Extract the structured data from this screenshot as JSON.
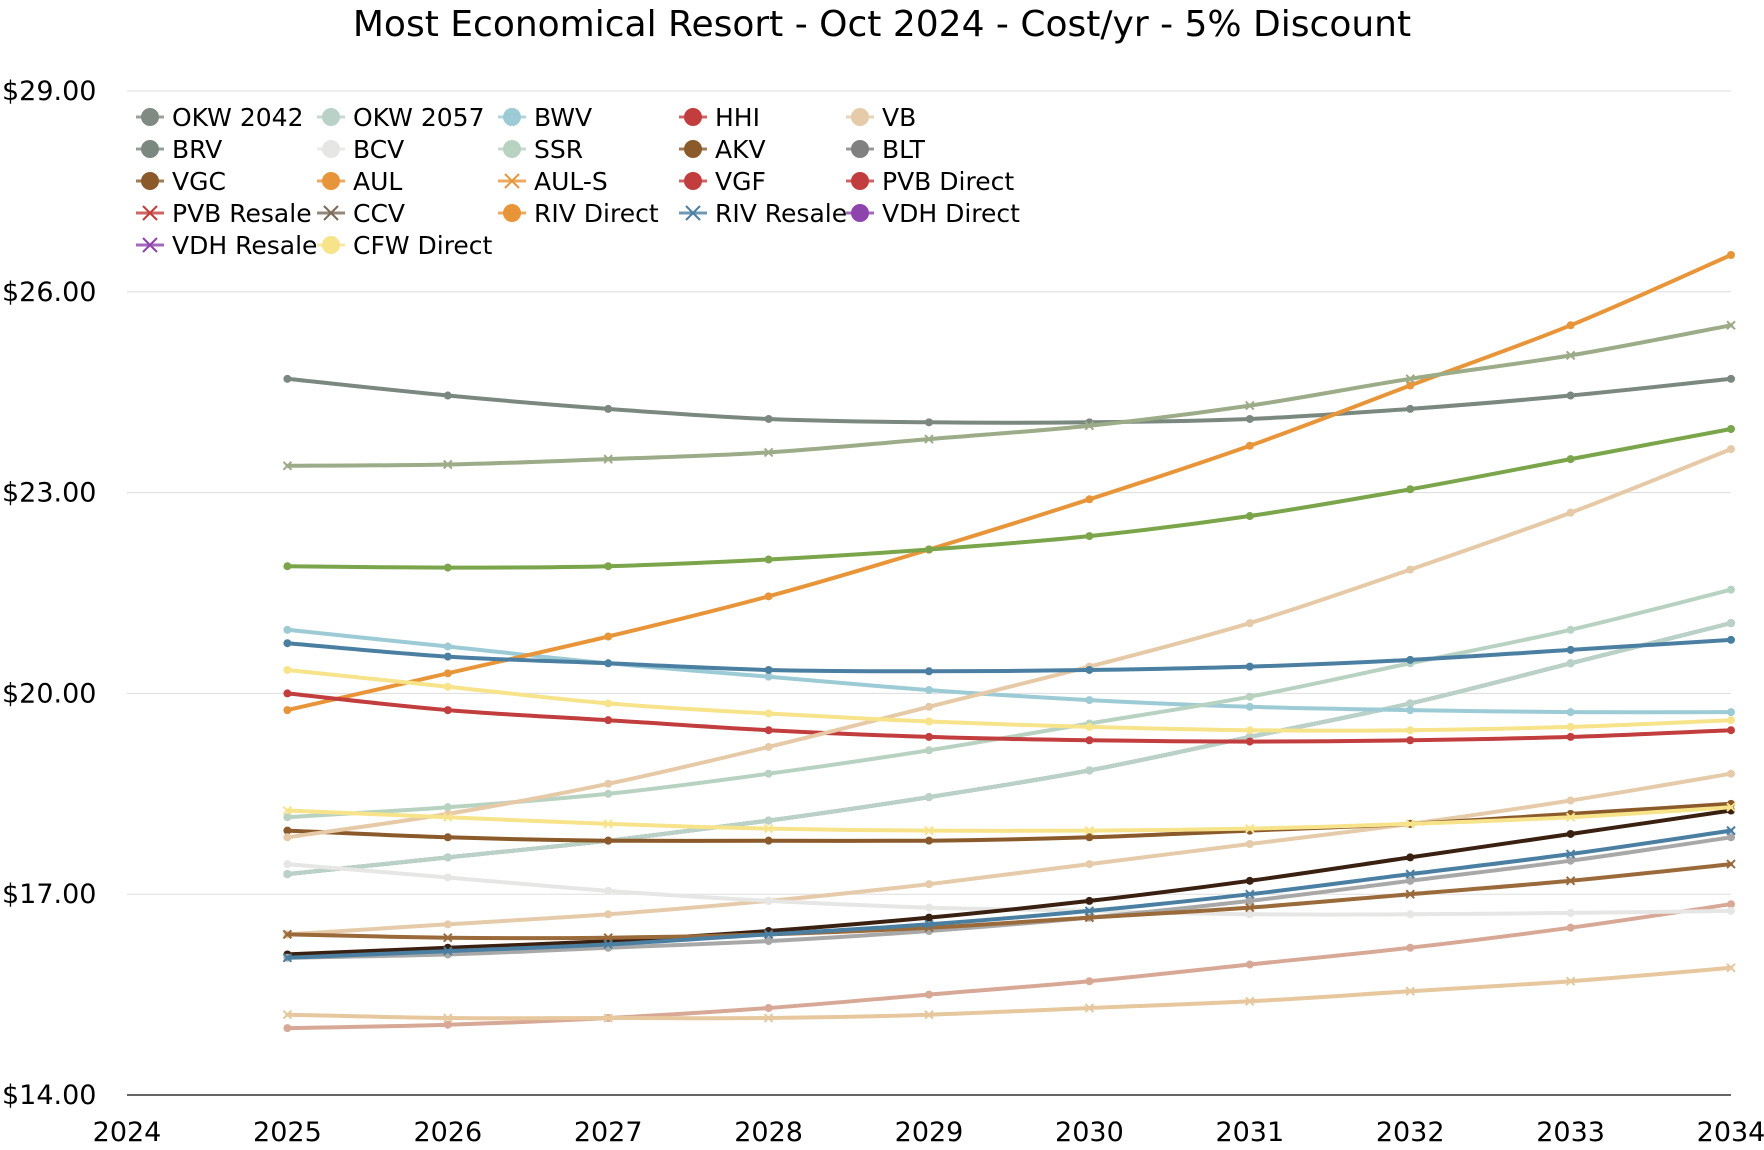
{
  "chart_data": {
    "type": "line",
    "title": "Most Economical Resort - Oct 2024 - Cost/yr - 5% Discount",
    "xlabel": "",
    "ylabel": "",
    "xlim": [
      2024,
      2034
    ],
    "ylim": [
      14,
      29
    ],
    "x_ticks": [
      "2024",
      "2025",
      "2026",
      "2027",
      "2028",
      "2029",
      "2030",
      "2031",
      "2032",
      "2033",
      "2034"
    ],
    "y_ticks": [
      "$14.00",
      "$17.00",
      "$20.00",
      "$23.00",
      "$26.00",
      "$29.00"
    ],
    "legend_position": "top-left",
    "x": [
      2025,
      2026,
      2027,
      2028,
      2029,
      2030,
      2031,
      2032,
      2033,
      2034
    ],
    "series": [
      {
        "name": "OKW 2042",
        "color": "#7f8b82",
        "marker": "dot",
        "values": [
          17.3,
          17.55,
          17.8,
          18.1,
          18.45,
          18.85,
          19.35,
          19.85,
          20.45,
          21.05
        ]
      },
      {
        "name": "OKW 2057",
        "color": "#b9d1c6",
        "marker": "dot",
        "values": [
          17.3,
          17.55,
          17.8,
          18.1,
          18.45,
          18.85,
          19.35,
          19.85,
          20.45,
          21.05
        ]
      },
      {
        "name": "BWV",
        "color": "#9ccbd6",
        "marker": "dot",
        "values": [
          20.95,
          20.7,
          20.45,
          20.25,
          20.05,
          19.9,
          19.8,
          19.75,
          19.72,
          19.72
        ]
      },
      {
        "name": "HHI",
        "color": "#d8a896",
        "marker": "dot",
        "values": [
          15.0,
          15.05,
          15.15,
          15.3,
          15.5,
          15.7,
          15.95,
          16.2,
          16.5,
          16.85
        ]
      },
      {
        "name": "VB",
        "color": "#e5cba9",
        "marker": "dot",
        "values": [
          16.4,
          16.55,
          16.7,
          16.9,
          17.15,
          17.45,
          17.75,
          18.05,
          18.4,
          18.8
        ]
      },
      {
        "name": "BRV",
        "color": "#7a8880",
        "marker": "dot",
        "values": [
          24.7,
          24.45,
          24.25,
          24.1,
          24.05,
          24.05,
          24.1,
          24.25,
          24.45,
          24.7
        ]
      },
      {
        "name": "BCV",
        "color": "#e6e6e4",
        "marker": "dot",
        "values": [
          17.45,
          17.25,
          17.05,
          16.9,
          16.8,
          16.75,
          16.7,
          16.7,
          16.72,
          16.75
        ]
      },
      {
        "name": "SSR",
        "color": "#b8d2c2",
        "marker": "dot",
        "values": [
          18.15,
          18.3,
          18.5,
          18.8,
          19.15,
          19.55,
          19.95,
          20.45,
          20.95,
          21.55
        ]
      },
      {
        "name": "AKV",
        "color": "#3a2010",
        "marker": "dot",
        "values": [
          16.1,
          16.2,
          16.3,
          16.45,
          16.65,
          16.9,
          17.2,
          17.55,
          17.9,
          18.25
        ]
      },
      {
        "name": "BLT",
        "color": "#a8a8a8",
        "marker": "dot",
        "values": [
          16.05,
          16.1,
          16.2,
          16.3,
          16.45,
          16.65,
          16.9,
          17.2,
          17.5,
          17.85
        ]
      },
      {
        "name": "VGC",
        "color": "#8b5a2b",
        "marker": "dot",
        "values": [
          17.95,
          17.85,
          17.8,
          17.8,
          17.8,
          17.85,
          17.95,
          18.05,
          18.2,
          18.35
        ]
      },
      {
        "name": "AUL",
        "color": "#e8953a",
        "marker": "dot",
        "values": [
          19.75,
          20.3,
          20.85,
          21.45,
          22.15,
          22.9,
          23.7,
          24.6,
          25.5,
          26.55
        ]
      },
      {
        "name": "AUL-S",
        "color": "#e6c79e",
        "marker": "x",
        "values": [
          15.2,
          15.15,
          15.15,
          15.15,
          15.2,
          15.3,
          15.4,
          15.55,
          15.7,
          15.9
        ]
      },
      {
        "name": "VGF",
        "color": "#c23e3e",
        "marker": "dot",
        "values": [
          20.0,
          19.75,
          19.6,
          19.45,
          19.35,
          19.3,
          19.28,
          19.3,
          19.35,
          19.45
        ]
      },
      {
        "name": "PVB Direct",
        "color": "#e6c9a6",
        "marker": "dot",
        "values": [
          17.85,
          18.2,
          18.65,
          19.2,
          19.8,
          20.4,
          21.05,
          21.85,
          22.7,
          23.65
        ]
      },
      {
        "name": "PVB Resale",
        "color": "#f7e38a",
        "marker": "x",
        "values": [
          18.25,
          18.15,
          18.05,
          17.98,
          17.95,
          17.95,
          17.98,
          18.05,
          18.15,
          18.3
        ]
      },
      {
        "name": "CCV",
        "color": "#9a6a3a",
        "marker": "x",
        "values": [
          16.4,
          16.35,
          16.35,
          16.4,
          16.5,
          16.65,
          16.8,
          17.0,
          17.2,
          17.45
        ]
      },
      {
        "name": "RIV Direct",
        "color": "#4a7fa2",
        "marker": "dot",
        "values": [
          20.75,
          20.55,
          20.45,
          20.35,
          20.33,
          20.35,
          20.4,
          20.5,
          20.65,
          20.8
        ]
      },
      {
        "name": "RIV Resale",
        "color": "#4a7fa2",
        "marker": "x",
        "values": [
          16.05,
          16.15,
          16.25,
          16.4,
          16.55,
          16.75,
          17.0,
          17.3,
          17.6,
          17.95
        ]
      },
      {
        "name": "VDH Direct",
        "color": "#7aa54a",
        "marker": "dot",
        "values": [
          21.9,
          21.88,
          21.9,
          22.0,
          22.15,
          22.35,
          22.65,
          23.05,
          23.5,
          23.95
        ]
      },
      {
        "name": "VDH Resale",
        "color": "#9cab88",
        "marker": "x",
        "values": [
          23.4,
          23.42,
          23.5,
          23.6,
          23.8,
          24.0,
          24.3,
          24.7,
          25.05,
          25.5
        ]
      },
      {
        "name": "CFW Direct",
        "color": "#f7e38a",
        "marker": "dot",
        "values": [
          20.35,
          20.1,
          19.85,
          19.7,
          19.58,
          19.5,
          19.45,
          19.45,
          19.5,
          19.6
        ]
      }
    ],
    "legend": [
      {
        "name": "OKW 2042",
        "color": "#7f8b82",
        "marker": "dot"
      },
      {
        "name": "OKW 2057",
        "color": "#b9d1c6",
        "marker": "dot"
      },
      {
        "name": "BWV",
        "color": "#9ccbd6",
        "marker": "dot"
      },
      {
        "name": "HHI",
        "color": "#c23e3e",
        "marker": "dot"
      },
      {
        "name": "VB",
        "color": "#e5cba9",
        "marker": "dot"
      },
      {
        "name": "BRV",
        "color": "#7a8880",
        "marker": "dot"
      },
      {
        "name": "BCV",
        "color": "#e6e6e4",
        "marker": "dot"
      },
      {
        "name": "SSR",
        "color": "#b8d2c2",
        "marker": "dot"
      },
      {
        "name": "AKV",
        "color": "#8b5a2b",
        "marker": "dot"
      },
      {
        "name": "BLT",
        "color": "#808080",
        "marker": "dot"
      },
      {
        "name": "VGC",
        "color": "#8b5a2b",
        "marker": "dot"
      },
      {
        "name": "AUL",
        "color": "#e8953a",
        "marker": "dot"
      },
      {
        "name": "AUL-S",
        "color": "#e8953a",
        "marker": "x"
      },
      {
        "name": "VGF",
        "color": "#c23e3e",
        "marker": "dot"
      },
      {
        "name": "PVB Direct",
        "color": "#c23e3e",
        "marker": "dot"
      },
      {
        "name": "PVB Resale",
        "color": "#c23e3e",
        "marker": "x"
      },
      {
        "name": "CCV",
        "color": "#7a6a5a",
        "marker": "x"
      },
      {
        "name": "RIV Direct",
        "color": "#e8953a",
        "marker": "dot"
      },
      {
        "name": "RIV Resale",
        "color": "#4a7fa2",
        "marker": "x"
      },
      {
        "name": "VDH Direct",
        "color": "#8e44ad",
        "marker": "dot"
      },
      {
        "name": "VDH Resale",
        "color": "#8e44ad",
        "marker": "x"
      },
      {
        "name": "CFW Direct",
        "color": "#f7e38a",
        "marker": "dot"
      }
    ]
  }
}
